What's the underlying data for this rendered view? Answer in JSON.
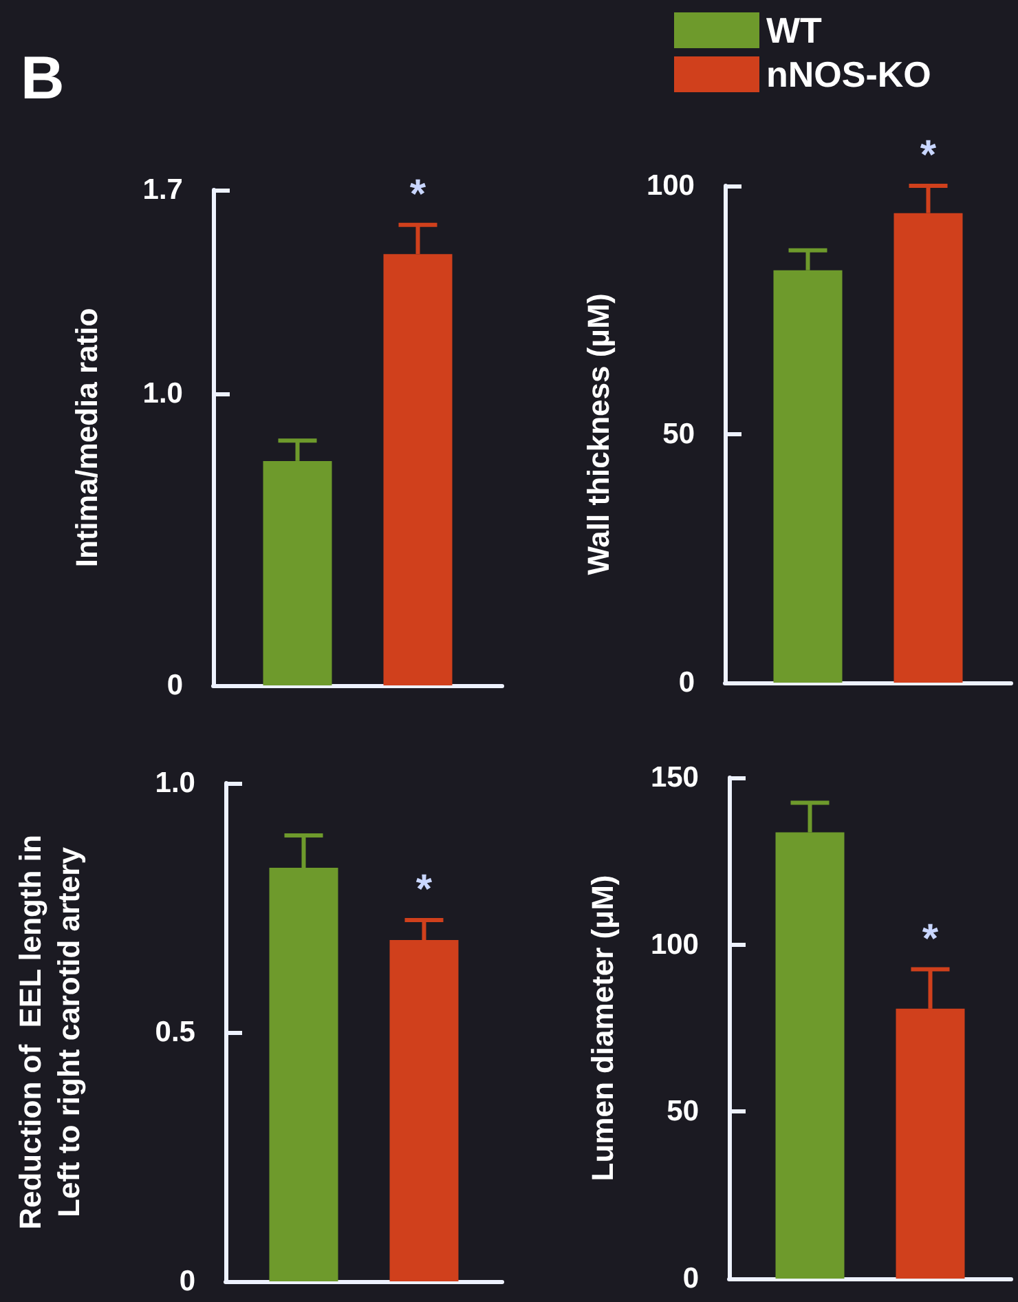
{
  "chart_data": [
    {
      "type": "bar",
      "title": "B",
      "ylabel": "Intima/media ratio",
      "categories": [
        null
      ],
      "ylim": [
        0,
        1.7
      ],
      "yticks": [
        0,
        {
          "value": 1,
          "label": "1.0"
        },
        1.7
      ],
      "tick_labels": "y",
      "annotations": [
        "*"
      ],
      "series": [
        {
          "color": "#6e9a2c",
          "values": [
            0.77
          ],
          "errors": [
            0.07
          ]
        },
        {
          "color": "#d0401c",
          "values": [
            1.48
          ],
          "errors": [
            0.1
          ]
        }
      ]
    },
    {
      "type": "bar",
      "ylabel": "Wall thickness (μM)",
      "categories": [
        null
      ],
      "ylim": [
        0,
        100
      ],
      "yticks": [
        0,
        50,
        100
      ],
      "tick_labels": "y",
      "legend": "top",
      "annotations": [
        "*"
      ],
      "series": [
        {
          "name": "WT",
          "color": "#6e9a2c",
          "values": [
            83
          ],
          "errors": [
            4
          ]
        },
        {
          "name": "nNOS-KO",
          "color": "#d0401c",
          "values": [
            94.5
          ],
          "errors": [
            5.5
          ]
        }
      ]
    },
    {
      "type": "bar",
      "ylabel": "Reduction of  EEL length in\nLeft to right carotid artery",
      "categories": [
        null
      ],
      "ylim": [
        0,
        1
      ],
      "yticks": [
        0,
        0.5,
        {
          "value": 1,
          "label": "1.0"
        }
      ],
      "tick_labels": "y",
      "annotations": [
        "*"
      ],
      "series": [
        {
          "color": "#6e9a2c",
          "values": [
            0.83
          ],
          "errors": [
            0.065
          ]
        },
        {
          "color": "#d0401c",
          "values": [
            0.685
          ],
          "errors": [
            0.04
          ]
        }
      ]
    },
    {
      "type": "bar",
      "ylabel": "Lumen diameter (μM)",
      "categories": [
        null
      ],
      "ylim": [
        0,
        150
      ],
      "yticks": [
        0,
        50,
        100,
        150
      ],
      "tick_labels": "y",
      "annotations": [
        "*"
      ],
      "series": [
        {
          "color": "#6e9a2c",
          "values": [
            133.6
          ],
          "errors": [
            8.9
          ]
        },
        {
          "color": "#d0401c",
          "values": [
            80.8
          ],
          "errors": [
            11.8
          ]
        }
      ]
    }
  ]
}
